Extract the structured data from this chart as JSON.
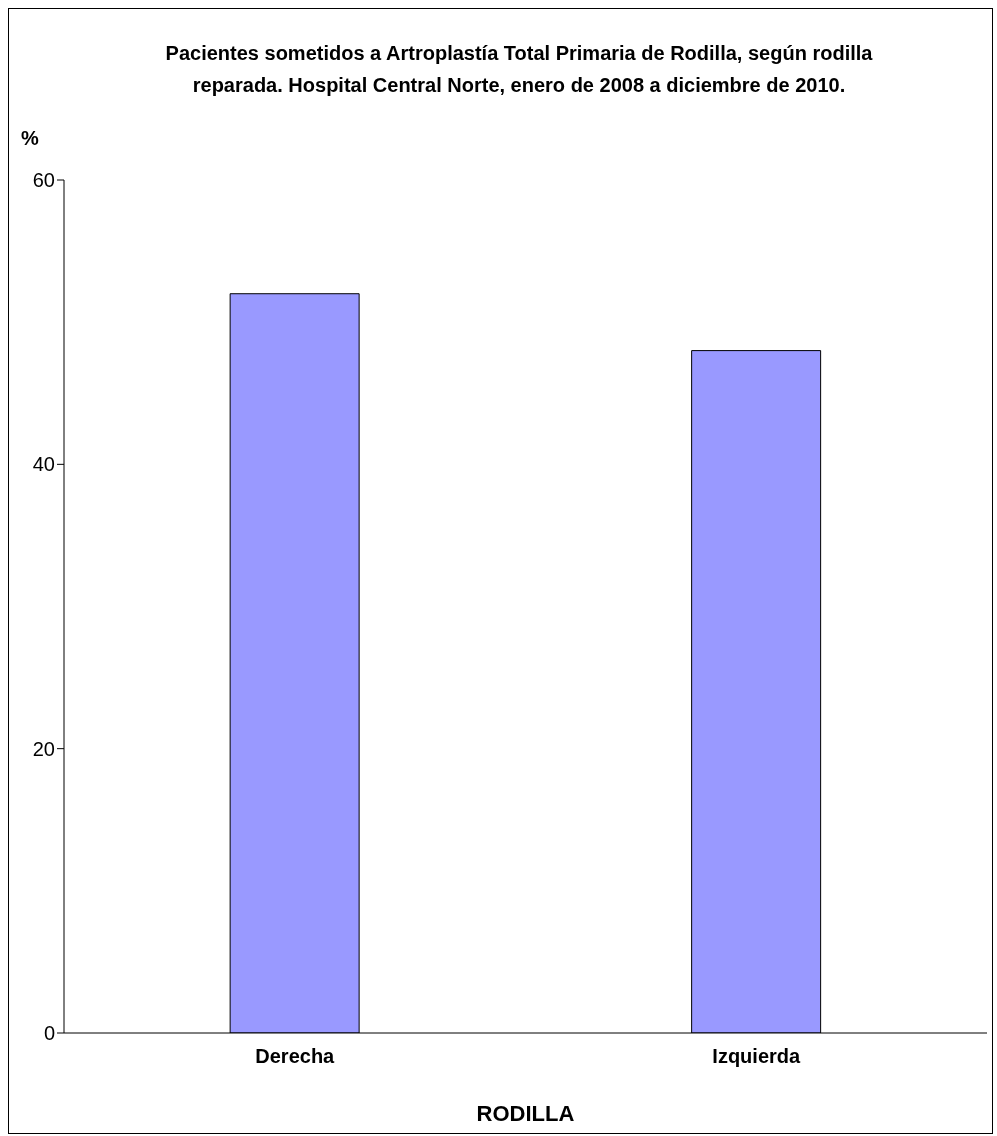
{
  "chart_data": {
    "type": "bar",
    "title": "Pacientes sometidos a Artroplastía Total Primaria de Rodilla, según rodilla reparada. Hospital Central Norte, enero de 2008 a diciembre de 2010.",
    "ylabel": "%",
    "xlabel": "RODILLA",
    "categories": [
      "Derecha",
      "Izquierda"
    ],
    "values": [
      52,
      48
    ],
    "color": "#9999ff",
    "ylim": [
      0,
      60
    ],
    "yticks": [
      0,
      20,
      40,
      60
    ],
    "grid": false,
    "legend": false
  }
}
